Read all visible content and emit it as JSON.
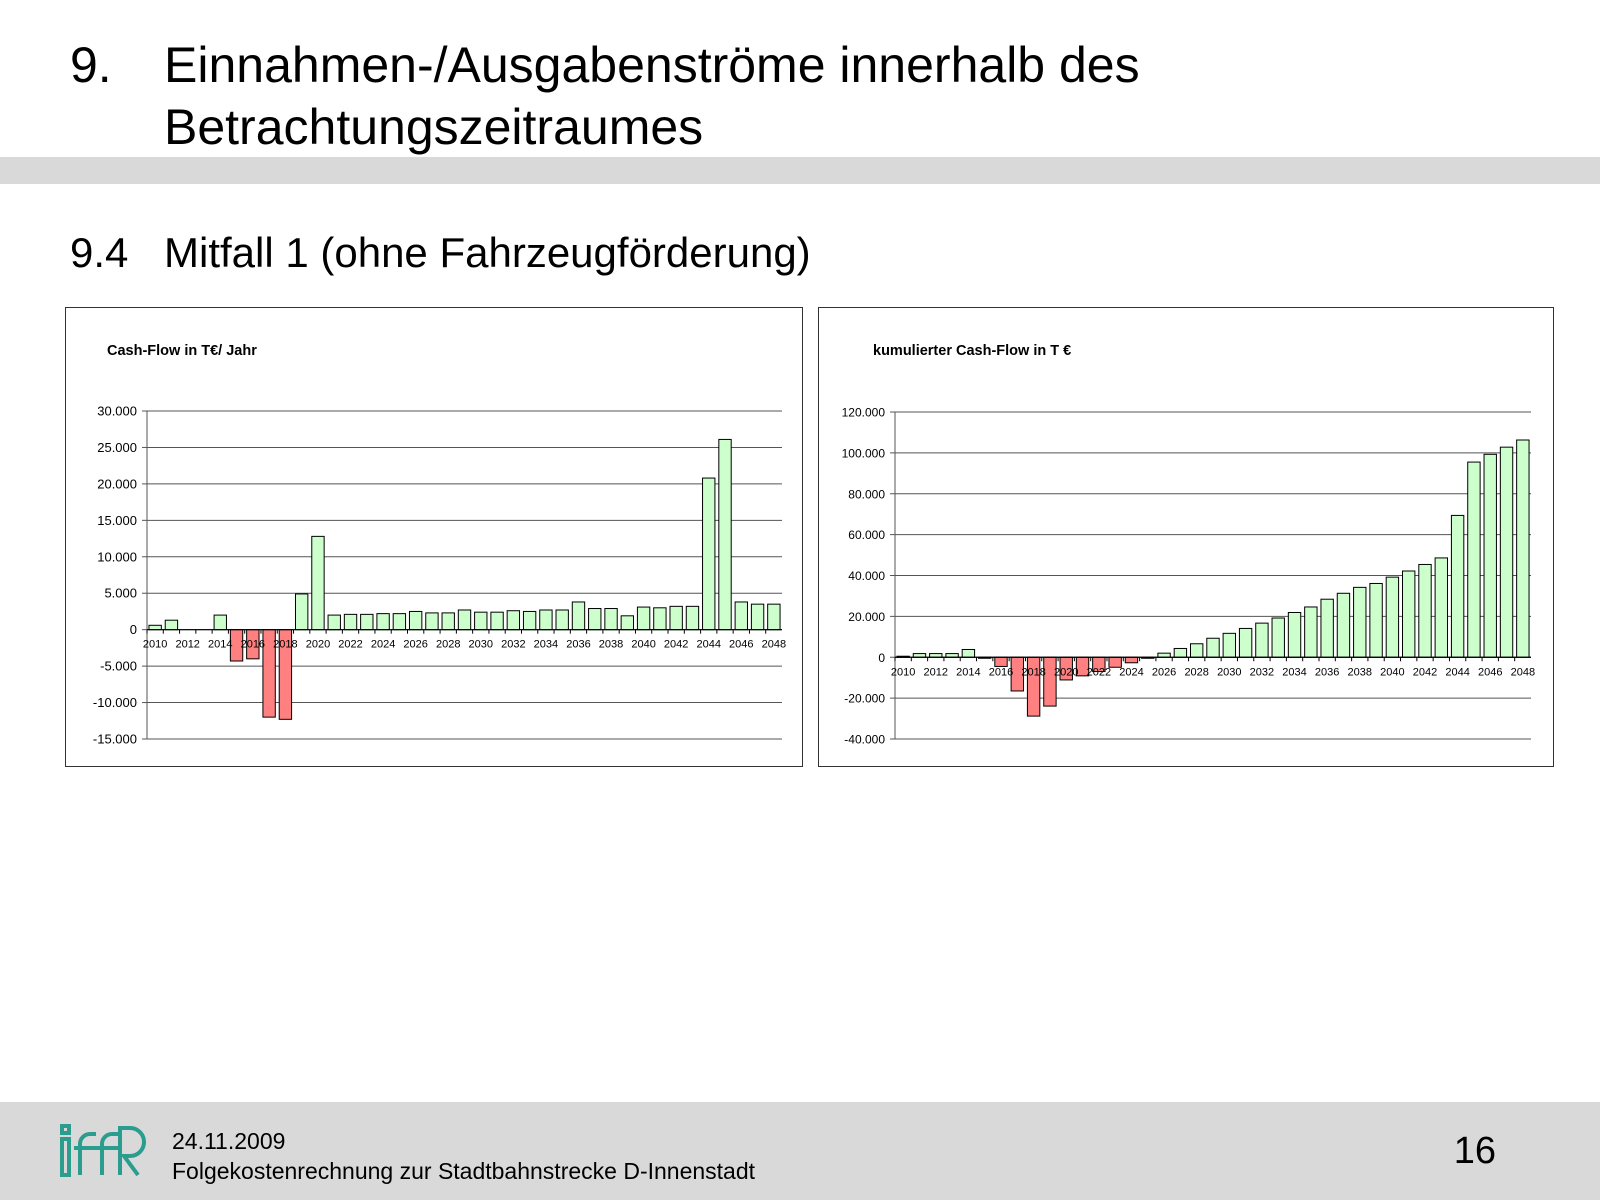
{
  "header": {
    "section_number": "9.",
    "section_title": "Einnahmen-/Ausgabenströme innerhalb des Betrachtungszeitraumes",
    "subsection_number": "9.4",
    "subsection_title": "Mitfall 1 (ohne Fahrzeugförderung)"
  },
  "footer": {
    "date": "24.11.2009",
    "description": "Folgekostenrechnung zur Stadtbahnstrecke D-Innenstadt",
    "page_number": "16",
    "logo_icon": "iff-logo-icon",
    "logo_color": "#2a9d8f"
  },
  "chart_data": [
    {
      "type": "bar",
      "title": "Cash-Flow in T€/ Jahr",
      "xlabel": "",
      "ylabel": "",
      "ylim": [
        -15000,
        30000
      ],
      "yticks": [
        30000,
        25000,
        20000,
        15000,
        10000,
        5000,
        0,
        -5000,
        -10000,
        -15000
      ],
      "ytick_labels": [
        "30.000",
        "25.000",
        "20.000",
        "15.000",
        "10.000",
        "5.000",
        "0",
        "-5.000",
        "-10.000",
        "-15.000"
      ],
      "categories": [
        "2010",
        "2011",
        "2012",
        "2013",
        "2014",
        "2015",
        "2016",
        "2017",
        "2018",
        "2019",
        "2020",
        "2021",
        "2022",
        "2023",
        "2024",
        "2025",
        "2026",
        "2027",
        "2028",
        "2029",
        "2030",
        "2031",
        "2032",
        "2033",
        "2034",
        "2035",
        "2036",
        "2037",
        "2038",
        "2039",
        "2040",
        "2041",
        "2042",
        "2043",
        "2044",
        "2045",
        "2046",
        "2047",
        "2048"
      ],
      "xtick_labels": [
        "2010",
        "2012",
        "2014",
        "2016",
        "2018",
        "2020",
        "2022",
        "2024",
        "2026",
        "2028",
        "2030",
        "2032",
        "2034",
        "2036",
        "2038",
        "2040",
        "2042",
        "2044",
        "2046",
        "2048"
      ],
      "values": [
        600,
        1300,
        0,
        0,
        2000,
        -4300,
        -4000,
        -12000,
        -12300,
        4900,
        12800,
        2000,
        2100,
        2100,
        2200,
        2200,
        2500,
        2300,
        2300,
        2700,
        2400,
        2400,
        2600,
        2500,
        2700,
        2700,
        3800,
        2900,
        2900,
        1900,
        3100,
        3000,
        3200,
        3200,
        20800,
        26100,
        3800,
        3500,
        3500
      ],
      "grid": true,
      "positive_color": "#ccffcc",
      "negative_color": "#ff8080"
    },
    {
      "type": "bar",
      "title": "kumulierter Cash-Flow in T €",
      "xlabel": "",
      "ylabel": "",
      "ylim": [
        -40000,
        120000
      ],
      "yticks": [
        120000,
        100000,
        80000,
        60000,
        40000,
        20000,
        0,
        -20000,
        -40000
      ],
      "ytick_labels": [
        "120.000",
        "100.000",
        "80.000",
        "60.000",
        "40.000",
        "20.000",
        "0",
        "-20.000",
        "-40.000"
      ],
      "categories": [
        "2010",
        "2011",
        "2012",
        "2013",
        "2014",
        "2015",
        "2016",
        "2017",
        "2018",
        "2019",
        "2020",
        "2021",
        "2022",
        "2023",
        "2024",
        "2025",
        "2026",
        "2027",
        "2028",
        "2029",
        "2030",
        "2031",
        "2032",
        "2033",
        "2034",
        "2035",
        "2036",
        "2037",
        "2038",
        "2039",
        "2040",
        "2041",
        "2042",
        "2043",
        "2044",
        "2045",
        "2046",
        "2047",
        "2048"
      ],
      "xtick_labels": [
        "2010",
        "2012",
        "2014",
        "2016",
        "2018",
        "2020",
        "2022",
        "2024",
        "2026",
        "2028",
        "2030",
        "2032",
        "2034",
        "2036",
        "2038",
        "2040",
        "2042",
        "2044",
        "2046",
        "2048"
      ],
      "values": [
        500,
        1800,
        1800,
        1800,
        3800,
        -500,
        -4500,
        -16500,
        -28800,
        -23900,
        -11100,
        -9100,
        -7000,
        -4900,
        -2700,
        -500,
        2000,
        4300,
        6600,
        9300,
        11700,
        14100,
        16700,
        19200,
        21900,
        24600,
        28400,
        31300,
        34200,
        36100,
        39200,
        42200,
        45400,
        48600,
        69400,
        95500,
        99300,
        102800,
        106300
      ],
      "grid": true,
      "positive_color": "#ccffcc",
      "negative_color": "#ff8080"
    }
  ]
}
